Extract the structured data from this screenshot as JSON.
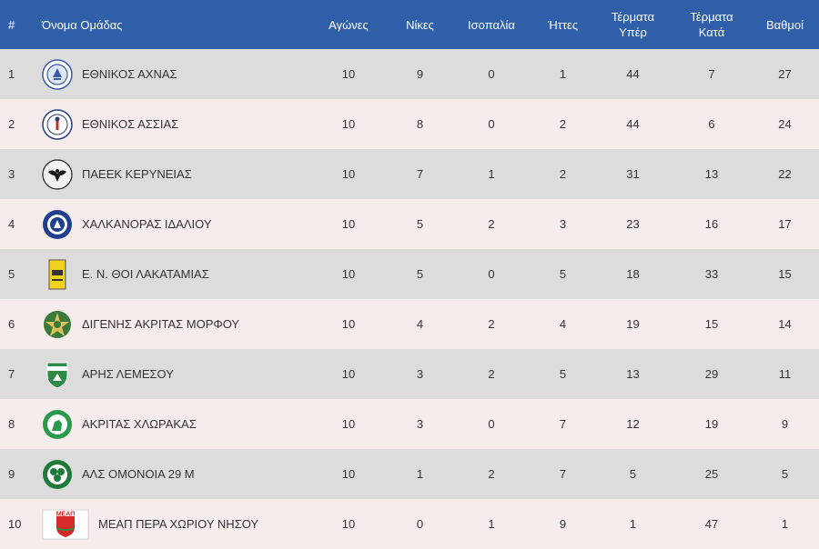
{
  "table": {
    "headers": {
      "pos": "#",
      "team": "Όνομα Ομάδας",
      "played": "Αγώνες",
      "wins": "Νίκες",
      "draws": "Ισοπαλία",
      "losses": "Ήττες",
      "gf_line1": "Τέρματα",
      "gf_line2": "Υπέρ",
      "ga_line1": "Τέρματα",
      "ga_line2": "Κατά",
      "points": "Βαθμοί"
    },
    "rows": [
      {
        "pos": "1",
        "team": "ΕΘΝΙΚΟΣ ΑΧΝΑΣ",
        "logo": "ethnikos-achnas-crest",
        "played": "10",
        "wins": "9",
        "draws": "0",
        "losses": "1",
        "gf": "44",
        "ga": "7",
        "points": "27"
      },
      {
        "pos": "2",
        "team": "ΕΘΝΙΚΟΣ ΑΣΣΙΑΣ",
        "logo": "ethnikos-assias-crest",
        "played": "10",
        "wins": "8",
        "draws": "0",
        "losses": "2",
        "gf": "44",
        "ga": "6",
        "points": "24"
      },
      {
        "pos": "3",
        "team": "ΠΑΕΕΚ ΚΕΡΥΝΕΙΑΣ",
        "logo": "paeek-keryneias-crest",
        "played": "10",
        "wins": "7",
        "draws": "1",
        "losses": "2",
        "gf": "31",
        "ga": "13",
        "points": "22"
      },
      {
        "pos": "4",
        "team": "ΧΑΛΚΑΝΟΡΑΣ ΙΔΑΛΙΟΥ",
        "logo": "chalkanoras-idaliou-crest",
        "played": "10",
        "wins": "5",
        "draws": "2",
        "losses": "3",
        "gf": "23",
        "ga": "16",
        "points": "17"
      },
      {
        "pos": "5",
        "team": "Ε. Ν. ΘΟΙ ΛΑΚΑΤΑΜΙΑΣ",
        "logo": "thoi-lakatamias-crest",
        "played": "10",
        "wins": "5",
        "draws": "0",
        "losses": "5",
        "gf": "18",
        "ga": "33",
        "points": "15"
      },
      {
        "pos": "6",
        "team": "ΔΙΓΕΝΗΣ ΑΚΡΙΤΑΣ ΜΟΡΦΟΥ",
        "logo": "digenis-morfou-crest",
        "played": "10",
        "wins": "4",
        "draws": "2",
        "losses": "4",
        "gf": "19",
        "ga": "15",
        "points": "14"
      },
      {
        "pos": "7",
        "team": "ΑΡΗΣ ΛΕΜΕΣΟΥ",
        "logo": "aris-lemesou-crest",
        "played": "10",
        "wins": "3",
        "draws": "2",
        "losses": "5",
        "gf": "13",
        "ga": "29",
        "points": "11"
      },
      {
        "pos": "8",
        "team": "ΑΚΡΙΤΑΣ ΧΛΩΡΑΚΑΣ",
        "logo": "akritas-chlorakas-crest",
        "played": "10",
        "wins": "3",
        "draws": "0",
        "losses": "7",
        "gf": "12",
        "ga": "19",
        "points": "9"
      },
      {
        "pos": "9",
        "team": "ΑΛΣ ΟΜΟΝΟΙΑ 29 Μ",
        "logo": "omonoia-29m-crest",
        "played": "10",
        "wins": "1",
        "draws": "2",
        "losses": "7",
        "gf": "5",
        "ga": "25",
        "points": "5"
      },
      {
        "pos": "10",
        "team": "ΜΕΑΠ ΠΕΡΑ ΧΩΡΙΟΥ ΝΗΣΟΥ",
        "logo": "meap-pera-choriou-crest",
        "logo_text": "ΜΕΑΠ",
        "played": "10",
        "wins": "0",
        "draws": "1",
        "losses": "9",
        "gf": "1",
        "ga": "47",
        "points": "1"
      }
    ]
  },
  "colors": {
    "header_bg": "#2f5fa8",
    "row_odd": "#dcdcdc",
    "row_even": "#f6ecec",
    "text": "#333333"
  }
}
